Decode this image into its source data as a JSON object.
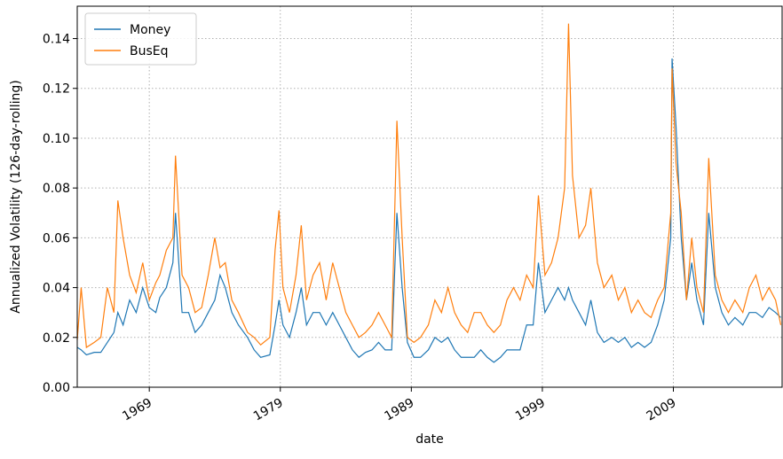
{
  "chart_data": {
    "type": "line",
    "x_label": "date",
    "y_label": "Annualized Volatility (126-day-rolling)",
    "xlim": [
      1963.5,
      2017.3
    ],
    "xticks": [
      1969,
      1979,
      1989,
      1999,
      2009
    ],
    "ylim": [
      0,
      0.153
    ],
    "yticks": [
      {
        "value": 0,
        "label": "0.00"
      },
      {
        "value": 0.02,
        "label": "0.02"
      },
      {
        "value": 0.04,
        "label": "0.04"
      },
      {
        "value": 0.06,
        "label": "0.06"
      },
      {
        "value": 0.08,
        "label": "0.08"
      },
      {
        "value": 0.1,
        "label": "0.10"
      },
      {
        "value": 0.12,
        "label": "0.12"
      },
      {
        "value": 0.14,
        "label": "0.14"
      }
    ],
    "grid": true,
    "legend": "upper left",
    "x": [
      1963.5,
      1963.8,
      1964.2,
      1964.8,
      1965.3,
      1965.8,
      1966.3,
      1966.6,
      1967.0,
      1967.5,
      1968.0,
      1968.5,
      1969.0,
      1969.5,
      1969.8,
      1970.3,
      1970.8,
      1971.0,
      1971.5,
      1972.0,
      1972.5,
      1973.0,
      1973.5,
      1974.0,
      1974.4,
      1974.8,
      1975.3,
      1975.8,
      1976.5,
      1977.0,
      1977.5,
      1978.2,
      1978.6,
      1978.9,
      1979.2,
      1979.7,
      1980.2,
      1980.6,
      1981.0,
      1981.5,
      1982.0,
      1982.5,
      1983.0,
      1983.5,
      1984.0,
      1984.5,
      1985.0,
      1985.5,
      1986.0,
      1986.5,
      1987.0,
      1987.5,
      1987.9,
      1988.3,
      1988.7,
      1989.2,
      1989.7,
      1990.3,
      1990.8,
      1991.3,
      1991.8,
      1992.3,
      1992.8,
      1993.3,
      1993.8,
      1994.3,
      1994.8,
      1995.3,
      1995.8,
      1996.3,
      1996.8,
      1997.3,
      1997.8,
      1998.3,
      1998.7,
      1999.2,
      1999.7,
      2000.2,
      2000.7,
      2001.0,
      2001.3,
      2001.8,
      2002.3,
      2002.7,
      2003.2,
      2003.7,
      2004.3,
      2004.8,
      2005.3,
      2005.8,
      2006.3,
      2006.8,
      2007.3,
      2007.8,
      2008.3,
      2008.8,
      2008.9,
      2009.2,
      2009.6,
      2010.0,
      2010.4,
      2010.8,
      2011.3,
      2011.7,
      2012.2,
      2012.7,
      2013.2,
      2013.7,
      2014.3,
      2014.8,
      2015.3,
      2015.8,
      2016.3,
      2016.8,
      2017.2
    ],
    "series": [
      {
        "name": "Money",
        "color": "#1f77b4",
        "values": [
          0.016,
          0.015,
          0.013,
          0.014,
          0.014,
          0.018,
          0.022,
          0.03,
          0.025,
          0.035,
          0.03,
          0.04,
          0.032,
          0.03,
          0.036,
          0.04,
          0.05,
          0.07,
          0.03,
          0.03,
          0.022,
          0.025,
          0.03,
          0.035,
          0.045,
          0.04,
          0.03,
          0.025,
          0.02,
          0.015,
          0.012,
          0.013,
          0.025,
          0.035,
          0.025,
          0.02,
          0.03,
          0.04,
          0.025,
          0.03,
          0.03,
          0.025,
          0.03,
          0.025,
          0.02,
          0.015,
          0.012,
          0.014,
          0.015,
          0.018,
          0.015,
          0.015,
          0.07,
          0.04,
          0.018,
          0.012,
          0.012,
          0.015,
          0.02,
          0.018,
          0.02,
          0.015,
          0.012,
          0.012,
          0.012,
          0.015,
          0.012,
          0.01,
          0.012,
          0.015,
          0.015,
          0.015,
          0.025,
          0.025,
          0.05,
          0.03,
          0.035,
          0.04,
          0.035,
          0.04,
          0.035,
          0.03,
          0.025,
          0.035,
          0.022,
          0.018,
          0.02,
          0.018,
          0.02,
          0.016,
          0.018,
          0.016,
          0.018,
          0.025,
          0.035,
          0.06,
          0.132,
          0.105,
          0.06,
          0.035,
          0.05,
          0.035,
          0.025,
          0.07,
          0.04,
          0.03,
          0.025,
          0.028,
          0.025,
          0.03,
          0.03,
          0.028,
          0.032,
          0.03,
          0.028
        ]
      },
      {
        "name": "BusEq",
        "color": "#ff7f0e",
        "values": [
          0.019,
          0.04,
          0.016,
          0.018,
          0.02,
          0.04,
          0.03,
          0.075,
          0.06,
          0.045,
          0.038,
          0.05,
          0.035,
          0.042,
          0.045,
          0.055,
          0.06,
          0.093,
          0.045,
          0.04,
          0.03,
          0.032,
          0.045,
          0.06,
          0.048,
          0.05,
          0.035,
          0.03,
          0.022,
          0.02,
          0.017,
          0.02,
          0.055,
          0.071,
          0.04,
          0.03,
          0.045,
          0.065,
          0.035,
          0.045,
          0.05,
          0.035,
          0.05,
          0.04,
          0.03,
          0.025,
          0.02,
          0.022,
          0.025,
          0.03,
          0.025,
          0.02,
          0.107,
          0.06,
          0.02,
          0.018,
          0.02,
          0.025,
          0.035,
          0.03,
          0.04,
          0.03,
          0.025,
          0.022,
          0.03,
          0.03,
          0.025,
          0.022,
          0.025,
          0.035,
          0.04,
          0.035,
          0.045,
          0.04,
          0.077,
          0.045,
          0.05,
          0.06,
          0.08,
          0.146,
          0.085,
          0.06,
          0.065,
          0.08,
          0.05,
          0.04,
          0.045,
          0.035,
          0.04,
          0.03,
          0.035,
          0.03,
          0.028,
          0.035,
          0.04,
          0.07,
          0.128,
          0.09,
          0.07,
          0.035,
          0.06,
          0.04,
          0.03,
          0.092,
          0.045,
          0.035,
          0.03,
          0.035,
          0.03,
          0.04,
          0.045,
          0.035,
          0.04,
          0.035,
          0.025
        ]
      }
    ]
  }
}
